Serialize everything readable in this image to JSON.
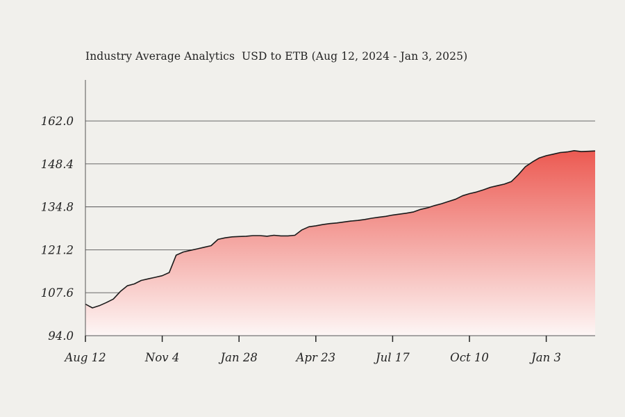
{
  "chart_data": {
    "type": "area",
    "title": "Industry Average Analytics  USD to ETB (Aug 12, 2024 - Jan 3, 2025)",
    "xlabel": "",
    "ylabel": "",
    "x_tick_labels": [
      "Aug 12",
      "Nov 4",
      "Jan 28",
      "Apr 23",
      "Jul 17",
      "Oct 10",
      "Jan 3"
    ],
    "y_tick_labels": [
      "94.0",
      "107.6",
      "121.2",
      "134.8",
      "148.4",
      "162.0"
    ],
    "ylim": [
      94.0,
      175.0
    ],
    "grid": "horizontal",
    "legend": "none",
    "colors": {
      "fill_top": "#ec5a52",
      "fill_bottom": "#fdf6f5",
      "line": "#1a1a1a",
      "grid": "#555555"
    },
    "series": [
      {
        "values": [
          104.0,
          102.8,
          103.5,
          104.5,
          105.6,
          108.0,
          109.8,
          110.4,
          111.5,
          112.0,
          112.5,
          113.0,
          114.0,
          119.5,
          120.5,
          121.0,
          121.5,
          122.0,
          122.5,
          124.5,
          125.0,
          125.3,
          125.4,
          125.5,
          125.7,
          125.7,
          125.5,
          125.8,
          125.6,
          125.6,
          125.8,
          127.5,
          128.5,
          128.8,
          129.2,
          129.5,
          129.7,
          130.0,
          130.3,
          130.5,
          130.8,
          131.2,
          131.5,
          131.8,
          132.2,
          132.5,
          132.8,
          133.2,
          134.0,
          134.5,
          135.2,
          135.8,
          136.5,
          137.2,
          138.3,
          139.0,
          139.5,
          140.2,
          141.0,
          141.5,
          142.0,
          142.8,
          145.0,
          147.5,
          149.0,
          150.3,
          151.0,
          151.5,
          152.0,
          152.2,
          152.6,
          152.3,
          152.4,
          152.5
        ]
      }
    ]
  }
}
